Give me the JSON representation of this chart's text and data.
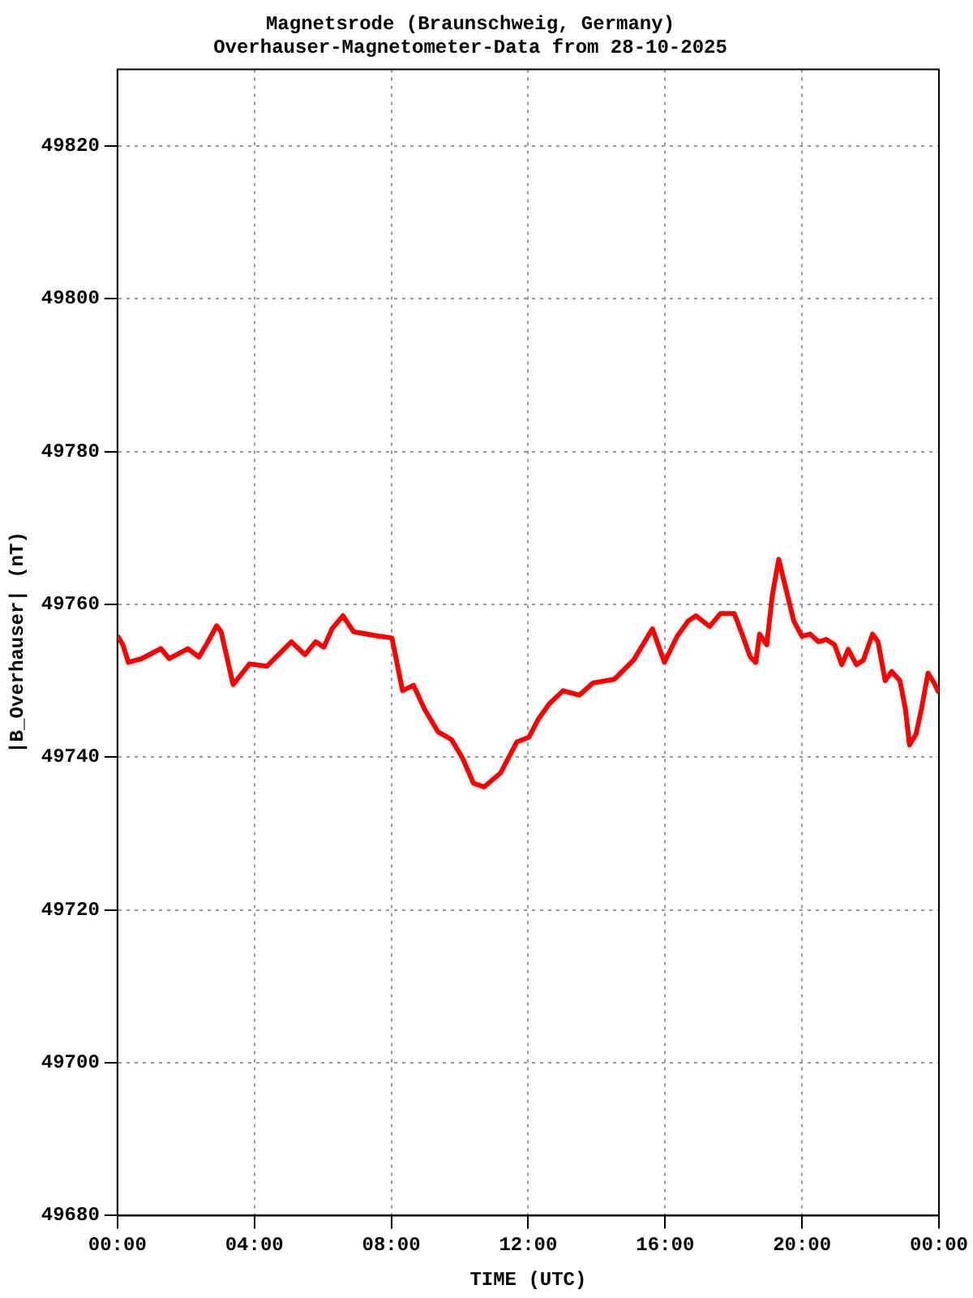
{
  "chart_data": {
    "type": "line",
    "title": "Magnetsrode (Braunschweig, Germany)",
    "subtitle": "Overhauser-Magnetometer-Data from 28-10-2025",
    "xlabel": "TIME (UTC)",
    "ylabel": "|B_Overhauser| (nT)",
    "xlim": [
      0,
      24
    ],
    "xticks": [
      {
        "value": 0,
        "label": "00:00"
      },
      {
        "value": 4,
        "label": "04:00"
      },
      {
        "value": 8,
        "label": "08:00"
      },
      {
        "value": 12,
        "label": "12:00"
      },
      {
        "value": 16,
        "label": "16:00"
      },
      {
        "value": 20,
        "label": "20:00"
      },
      {
        "value": 24,
        "label": "00:00"
      }
    ],
    "ylim": [
      49680,
      49830
    ],
    "yticks": [
      49680,
      49700,
      49720,
      49740,
      49760,
      49780,
      49800,
      49820
    ],
    "grid": true,
    "legend": false,
    "marker": "none",
    "line_style": "solid",
    "series": [
      {
        "color": "#ff0000",
        "x": [
          0,
          0.16,
          0.32,
          0.71,
          1.27,
          1.51,
          2.06,
          2.38,
          2.62,
          2.9,
          3.03,
          3.38,
          3.86,
          4.37,
          5.08,
          5.48,
          5.79,
          6.03,
          6.27,
          6.59,
          6.9,
          7.54,
          8.02,
          8.33,
          8.65,
          8.97,
          9.37,
          9.76,
          10.08,
          10.4,
          10.71,
          11.19,
          11.67,
          12.02,
          12.3,
          12.62,
          13.02,
          13.49,
          13.89,
          14.52,
          15.08,
          15.63,
          15.98,
          16.35,
          16.67,
          16.9,
          17.3,
          17.62,
          18.02,
          18.25,
          18.49,
          18.65,
          18.76,
          18.97,
          19.13,
          19.32,
          19.52,
          19.76,
          20.0,
          20.24,
          20.48,
          20.71,
          20.95,
          21.16,
          21.35,
          21.59,
          21.79,
          22.06,
          22.22,
          22.43,
          22.62,
          22.86,
          23.02,
          23.14,
          23.33,
          23.49,
          23.68,
          23.86,
          24.0
        ],
        "values": [
          49755.9,
          49754.7,
          49752.4,
          49752.9,
          49754.2,
          49752.9,
          49754.2,
          49753.1,
          49754.9,
          49757.2,
          49756.4,
          49749.5,
          49752.2,
          49751.9,
          49755.1,
          49753.4,
          49755.1,
          49754.4,
          49756.8,
          49758.5,
          49756.4,
          49755.9,
          49755.6,
          49748.7,
          49749.4,
          49746.3,
          49743.3,
          49742.3,
          49739.9,
          49736.6,
          49736.1,
          49737.9,
          49742.0,
          49742.6,
          49745.0,
          49747.0,
          49748.7,
          49748.1,
          49749.7,
          49750.2,
          49752.7,
          49756.8,
          49752.4,
          49755.8,
          49757.8,
          49758.5,
          49757.1,
          49758.8,
          49758.8,
          49756.1,
          49753.1,
          49752.4,
          49756.1,
          49754.7,
          49761.1,
          49765.9,
          49762.2,
          49757.8,
          49755.8,
          49756.1,
          49755.1,
          49755.4,
          49754.7,
          49752.1,
          49754.1,
          49752.1,
          49752.7,
          49756.1,
          49755.1,
          49750.0,
          49751.2,
          49750.0,
          49746.3,
          49741.6,
          49743.0,
          49746.3,
          49751.0,
          49749.7,
          49748.4
        ]
      }
    ]
  }
}
